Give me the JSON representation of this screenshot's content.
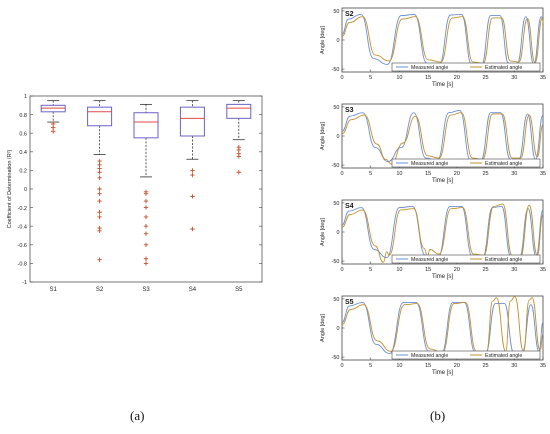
{
  "captions": {
    "a": "(a)",
    "b": "(b)"
  },
  "colors": {
    "box": "#6a62c8",
    "median": "#e04848",
    "whisker": "#333333",
    "outlier": "#c4502c",
    "measured": "#6c8ed8",
    "estimated": "#c0902c"
  },
  "chart_data": [
    {
      "type": "box",
      "title": "",
      "ylabel": "Coefficient of Determination (R²)",
      "xlabel": "",
      "ylim": [
        -1,
        1
      ],
      "yticks": [
        "-1",
        "-0.8",
        "-0.6",
        "-0.4",
        "-0.2",
        "0",
        "0.2",
        "0.4",
        "0.6",
        "0.8",
        "1"
      ],
      "ytick_values": [
        -1,
        -0.8,
        -0.6,
        -0.4,
        -0.2,
        0,
        0.2,
        0.4,
        0.6,
        0.8,
        1
      ],
      "categories": [
        "S1",
        "S2",
        "S3",
        "S4",
        "S5"
      ],
      "boxes": [
        {
          "name": "S1",
          "whisker_low": 0.72,
          "q1": 0.83,
          "median": 0.87,
          "q3": 0.9,
          "whisker_high": 0.95,
          "outliers": [
            0.7,
            0.66,
            0.62
          ]
        },
        {
          "name": "S2",
          "whisker_low": 0.37,
          "q1": 0.68,
          "median": 0.83,
          "q3": 0.88,
          "whisker_high": 0.95,
          "outliers": [
            0.3,
            0.26,
            0.22,
            0.18,
            0.12,
            0.0,
            -0.05,
            -0.13,
            -0.25,
            -0.3,
            -0.42,
            -0.45,
            -0.76
          ]
        },
        {
          "name": "S3",
          "whisker_low": 0.13,
          "q1": 0.55,
          "median": 0.72,
          "q3": 0.82,
          "whisker_high": 0.91,
          "outliers": [
            -0.03,
            -0.05,
            -0.13,
            -0.2,
            -0.3,
            -0.4,
            -0.48,
            -0.6,
            -0.75,
            -0.8
          ]
        },
        {
          "name": "S4",
          "whisker_low": 0.32,
          "q1": 0.57,
          "median": 0.76,
          "q3": 0.88,
          "whisker_high": 0.95,
          "outliers": [
            0.2,
            0.15,
            -0.08,
            -0.43
          ]
        },
        {
          "name": "S5",
          "whisker_low": 0.53,
          "q1": 0.76,
          "median": 0.87,
          "q3": 0.91,
          "whisker_high": 0.95,
          "outliers": [
            0.45,
            0.42,
            0.38,
            0.35,
            0.18
          ]
        }
      ]
    },
    {
      "type": "line",
      "panel": "S2",
      "xlabel": "Time [s]",
      "ylabel": "Angle [deg]",
      "xlim": [
        0,
        35
      ],
      "ylim": [
        -55,
        55
      ],
      "xticks": [
        0,
        5,
        10,
        15,
        20,
        25,
        30,
        35
      ],
      "yticks": [
        -50,
        0,
        50
      ],
      "legend_position": "bottom-right",
      "series": [
        {
          "name": "Measured angle",
          "x": [
            0,
            1.1,
            3.3,
            5.5,
            7.9,
            10.3,
            12.6,
            14.8,
            16.9,
            18.9,
            20.8,
            22.6,
            24.3,
            25.9,
            27.5,
            29.0,
            30.5,
            32.0,
            33.4,
            34.7,
            35.0
          ],
          "y": [
            10,
            36,
            44,
            -32,
            -42,
            42,
            44,
            -40,
            -43,
            43,
            44,
            -43,
            -43,
            42,
            42,
            -40,
            -41,
            40,
            -42,
            40,
            35
          ]
        },
        {
          "name": "Estimated angle",
          "x": [
            0,
            1.3,
            3.6,
            5.8,
            8.2,
            10.5,
            12.8,
            15.0,
            17.2,
            19.2,
            21.0,
            22.8,
            24.6,
            26.2,
            27.8,
            29.3,
            30.8,
            32.3,
            33.6,
            34.9,
            35.0
          ],
          "y": [
            6,
            30,
            40,
            -26,
            -36,
            36,
            40,
            -34,
            -38,
            38,
            40,
            -38,
            -40,
            38,
            38,
            -36,
            -38,
            37,
            -39,
            38,
            30
          ]
        }
      ]
    },
    {
      "type": "line",
      "panel": "S3",
      "xlabel": "Time [s]",
      "ylabel": "Angle [deg]",
      "xlim": [
        0,
        35
      ],
      "ylim": [
        -55,
        55
      ],
      "xticks": [
        0,
        5,
        10,
        15,
        20,
        25,
        30,
        35
      ],
      "yticks": [
        -50,
        0,
        50
      ],
      "legend_position": "bottom-right",
      "series": [
        {
          "name": "Measured angle",
          "x": [
            0,
            1.4,
            3.6,
            5.8,
            8.0,
            10.3,
            12.5,
            14.6,
            16.6,
            18.6,
            20.5,
            22.4,
            24.2,
            25.9,
            27.6,
            29.3,
            30.8,
            32.3,
            33.7,
            35.0
          ],
          "y": [
            8,
            34,
            40,
            -20,
            -44,
            -20,
            40,
            -38,
            -42,
            40,
            44,
            -42,
            -42,
            40,
            40,
            -40,
            -40,
            38,
            -40,
            36
          ]
        },
        {
          "name": "Estimated angle",
          "x": [
            0,
            1.6,
            3.9,
            6.1,
            7.6,
            8.6,
            10.6,
            12.8,
            14.9,
            16.9,
            18.9,
            20.8,
            22.7,
            24.5,
            26.2,
            27.9,
            29.6,
            31.1,
            32.6,
            34.0,
            35.0
          ],
          "y": [
            4,
            28,
            36,
            -14,
            -40,
            -48,
            -12,
            34,
            -34,
            -38,
            36,
            40,
            -38,
            -40,
            38,
            38,
            -38,
            -38,
            36,
            -36,
            20
          ]
        }
      ]
    },
    {
      "type": "line",
      "panel": "S4",
      "xlabel": "Time [s]",
      "ylabel": "Angle [deg]",
      "xlim": [
        0,
        35
      ],
      "ylim": [
        -55,
        55
      ],
      "xticks": [
        0,
        5,
        10,
        15,
        20,
        25,
        30,
        35
      ],
      "yticks": [
        -50,
        0,
        50
      ],
      "legend_position": "bottom-right",
      "series": [
        {
          "name": "Measured angle",
          "x": [
            0,
            1.2,
            3.4,
            5.6,
            7.8,
            10.0,
            12.3,
            14.5,
            16.7,
            18.8,
            20.8,
            22.7,
            24.5,
            26.2,
            27.8,
            29.4,
            30.9,
            32.4,
            33.8,
            35.0
          ],
          "y": [
            12,
            36,
            42,
            -30,
            -44,
            42,
            44,
            -40,
            -44,
            44,
            44,
            -42,
            -44,
            42,
            44,
            -42,
            -44,
            40,
            -42,
            38
          ]
        },
        {
          "name": "Estimated angle",
          "x": [
            0,
            1.4,
            3.6,
            5.8,
            7.2,
            7.8,
            8.2,
            10.2,
            12.5,
            14.3,
            14.9,
            15.3,
            16.9,
            19.0,
            21.0,
            22.9,
            24.7,
            26.4,
            28.0,
            29.6,
            31.1,
            32.6,
            34.0,
            35.0
          ],
          "y": [
            8,
            30,
            38,
            -24,
            -52,
            -34,
            -40,
            38,
            40,
            -28,
            -42,
            -30,
            -38,
            40,
            42,
            -38,
            -40,
            44,
            48,
            -40,
            -42,
            46,
            -40,
            30
          ]
        }
      ]
    },
    {
      "type": "line",
      "panel": "S5",
      "xlabel": "Time [s]",
      "ylabel": "Angle [deg]",
      "xlim": [
        0,
        35
      ],
      "ylim": [
        -55,
        55
      ],
      "xticks": [
        0,
        5,
        10,
        15,
        20,
        25,
        30,
        35
      ],
      "yticks": [
        -50,
        0,
        50
      ],
      "legend_position": "bottom-right",
      "series": [
        {
          "name": "Measured angle",
          "x": [
            0,
            1.3,
            3.6,
            5.9,
            8.3,
            10.7,
            12.9,
            15.1,
            17.3,
            19.3,
            21.3,
            23.2,
            25.0,
            26.7,
            28.3,
            29.9,
            31.4,
            32.9,
            34.3,
            35.0
          ],
          "y": [
            10,
            38,
            44,
            -28,
            -44,
            44,
            44,
            -40,
            -44,
            44,
            44,
            -42,
            -44,
            42,
            42,
            -42,
            -42,
            40,
            -40,
            10
          ]
        },
        {
          "name": "Estimated angle",
          "x": [
            0,
            1.5,
            3.8,
            6.1,
            8.5,
            10.9,
            13.1,
            15.3,
            17.5,
            19.5,
            21.5,
            23.4,
            25.2,
            26.2,
            26.9,
            28.5,
            29.3,
            30.1,
            31.6,
            32.6,
            33.1,
            34.5,
            35.0
          ],
          "y": [
            6,
            32,
            40,
            -22,
            -40,
            40,
            42,
            -36,
            -42,
            42,
            44,
            -40,
            -40,
            46,
            52,
            -40,
            46,
            54,
            -40,
            48,
            52,
            -38,
            -10
          ]
        }
      ]
    }
  ]
}
